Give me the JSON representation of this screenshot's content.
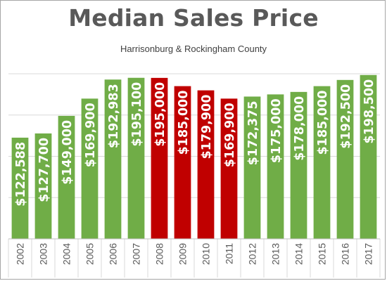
{
  "title": "Median Sales Price",
  "subtitle": "Harrisonburg & Rockingham County",
  "colors": {
    "rise": "#70ad47",
    "decline": "#c00000",
    "grid": "#d9d9d9",
    "label": "#ffffff",
    "axis_text": "#595959"
  },
  "chart_data": {
    "type": "bar",
    "title": "Median Sales Price",
    "subtitle": "Harrisonburg & Rockingham County",
    "categories": [
      "2002",
      "2003",
      "2004",
      "2005",
      "2006",
      "2007",
      "2008",
      "2009",
      "2010",
      "2011",
      "2012",
      "2013",
      "2014",
      "2015",
      "2016",
      "2017"
    ],
    "values": [
      122588,
      127700,
      149000,
      169900,
      192983,
      195100,
      195000,
      185000,
      179900,
      169900,
      172375,
      175000,
      178000,
      185000,
      192500,
      198500
    ],
    "labels": [
      "$122,588",
      "$127,700",
      "$149,000",
      "$169,900",
      "$192,983",
      "$195,100",
      "$195,000",
      "$185,000",
      "$179,900",
      "$169,900",
      "$172,375",
      "$175,000",
      "$178,000",
      "$185,000",
      "$192,500",
      "$198,500"
    ],
    "bar_colors": [
      "rise",
      "rise",
      "rise",
      "rise",
      "rise",
      "rise",
      "decline",
      "decline",
      "decline",
      "decline",
      "rise",
      "rise",
      "rise",
      "rise",
      "rise",
      "rise"
    ],
    "ylim": [
      0,
      200000
    ],
    "y_gridlines": [
      50000,
      100000,
      150000,
      200000
    ],
    "y_tick_labels_shown": false,
    "grid": true,
    "legend": "none",
    "xlabel": "",
    "ylabel": ""
  }
}
